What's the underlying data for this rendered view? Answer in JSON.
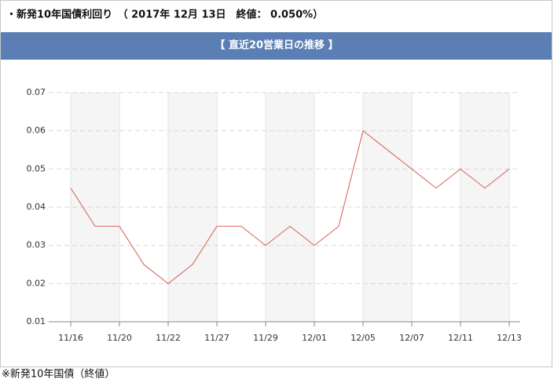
{
  "chart_data": {
    "type": "line",
    "title": "・新発10年国債利回り　（ 2017年 12月 13日　終値： 0.050%）",
    "subtitle": "【 直近20営業日の推移 】",
    "note": "※新発10年国債（終値）",
    "categories": [
      "11/16",
      null,
      "11/20",
      null,
      "11/22",
      null,
      "11/27",
      null,
      "11/29",
      null,
      "12/01",
      null,
      "12/05",
      null,
      "12/07",
      null,
      "12/11",
      null,
      "12/13"
    ],
    "values": [
      0.045,
      0.035,
      0.035,
      0.025,
      0.02,
      0.025,
      0.035,
      0.035,
      0.03,
      0.035,
      0.03,
      0.035,
      0.06,
      0.055,
      0.05,
      0.045,
      0.05,
      0.045,
      0.05
    ],
    "color": "#d9756c",
    "ylim": [
      0.01,
      0.07
    ],
    "yticks": [
      0.01,
      0.02,
      0.03,
      0.04,
      0.05,
      0.06,
      0.07
    ],
    "grid": true
  }
}
